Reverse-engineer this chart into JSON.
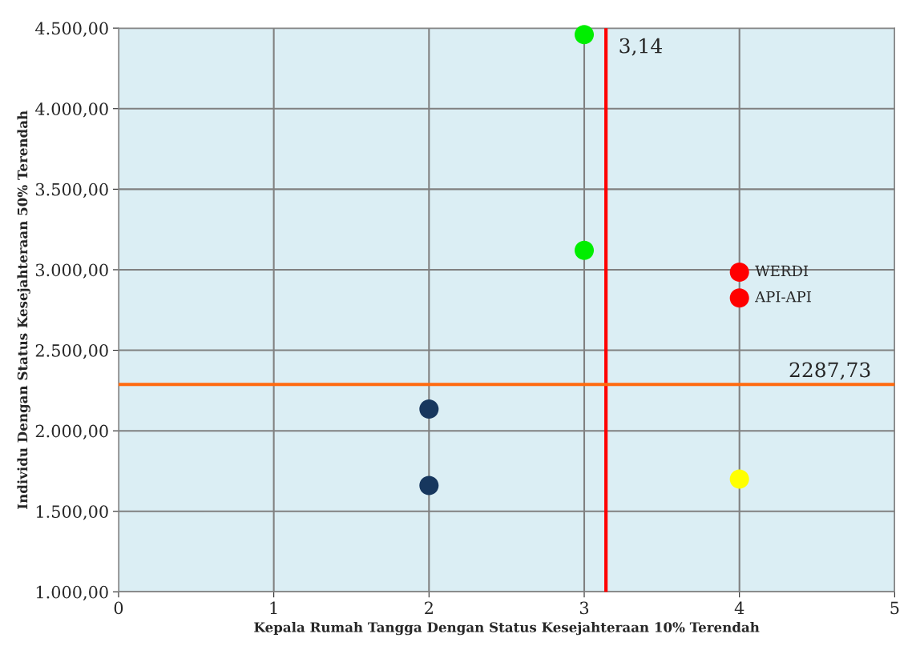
{
  "chart_data": {
    "type": "scatter",
    "xlabel": "Kepala Rumah Tangga Dengan Status Kesejahteraan 10% Terendah",
    "ylabel": "Individu Dengan Status Kesejahteraan 50% Terendah",
    "series": [
      {
        "color": "#00ee00",
        "x": [
          3,
          3
        ],
        "values": [
          4460,
          3120
        ]
      },
      {
        "color": "#ff0000",
        "x": [
          4,
          4
        ],
        "values": [
          2985,
          2825
        ]
      },
      {
        "color": "#17375e",
        "x": [
          2,
          2
        ],
        "values": [
          2135,
          1660
        ]
      },
      {
        "color": "#ffff00",
        "x": [
          4
        ],
        "values": [
          1700
        ]
      }
    ],
    "marker": "circle",
    "xlim": [
      0,
      5
    ],
    "xticks": [
      0,
      1,
      2,
      3,
      4,
      5
    ],
    "ylim": [
      1000,
      4500
    ],
    "yticks": [
      {
        "value": 1000,
        "label": "1.000,00"
      },
      {
        "value": 1500,
        "label": "1.500,00"
      },
      {
        "value": 2000,
        "label": "2.000,00"
      },
      {
        "value": 2500,
        "label": "2.500,00"
      },
      {
        "value": 3000,
        "label": "3.000,00"
      },
      {
        "value": 3500,
        "label": "3.500,00"
      },
      {
        "value": 4000,
        "label": "4.000,00"
      },
      {
        "value": 4500,
        "label": "4.500,00"
      }
    ],
    "grid": true,
    "ref_lines": [
      {
        "axis": "x",
        "value": 3.14,
        "label": "3,14",
        "color": "#ff0000"
      },
      {
        "axis": "y",
        "value": 2287.73,
        "label": "2287,73",
        "color": "#ff6a10"
      }
    ],
    "annotations": [
      {
        "text": "WERDI",
        "x": 4,
        "y": 2985
      },
      {
        "text": "API-API",
        "x": 4,
        "y": 2825
      }
    ]
  }
}
